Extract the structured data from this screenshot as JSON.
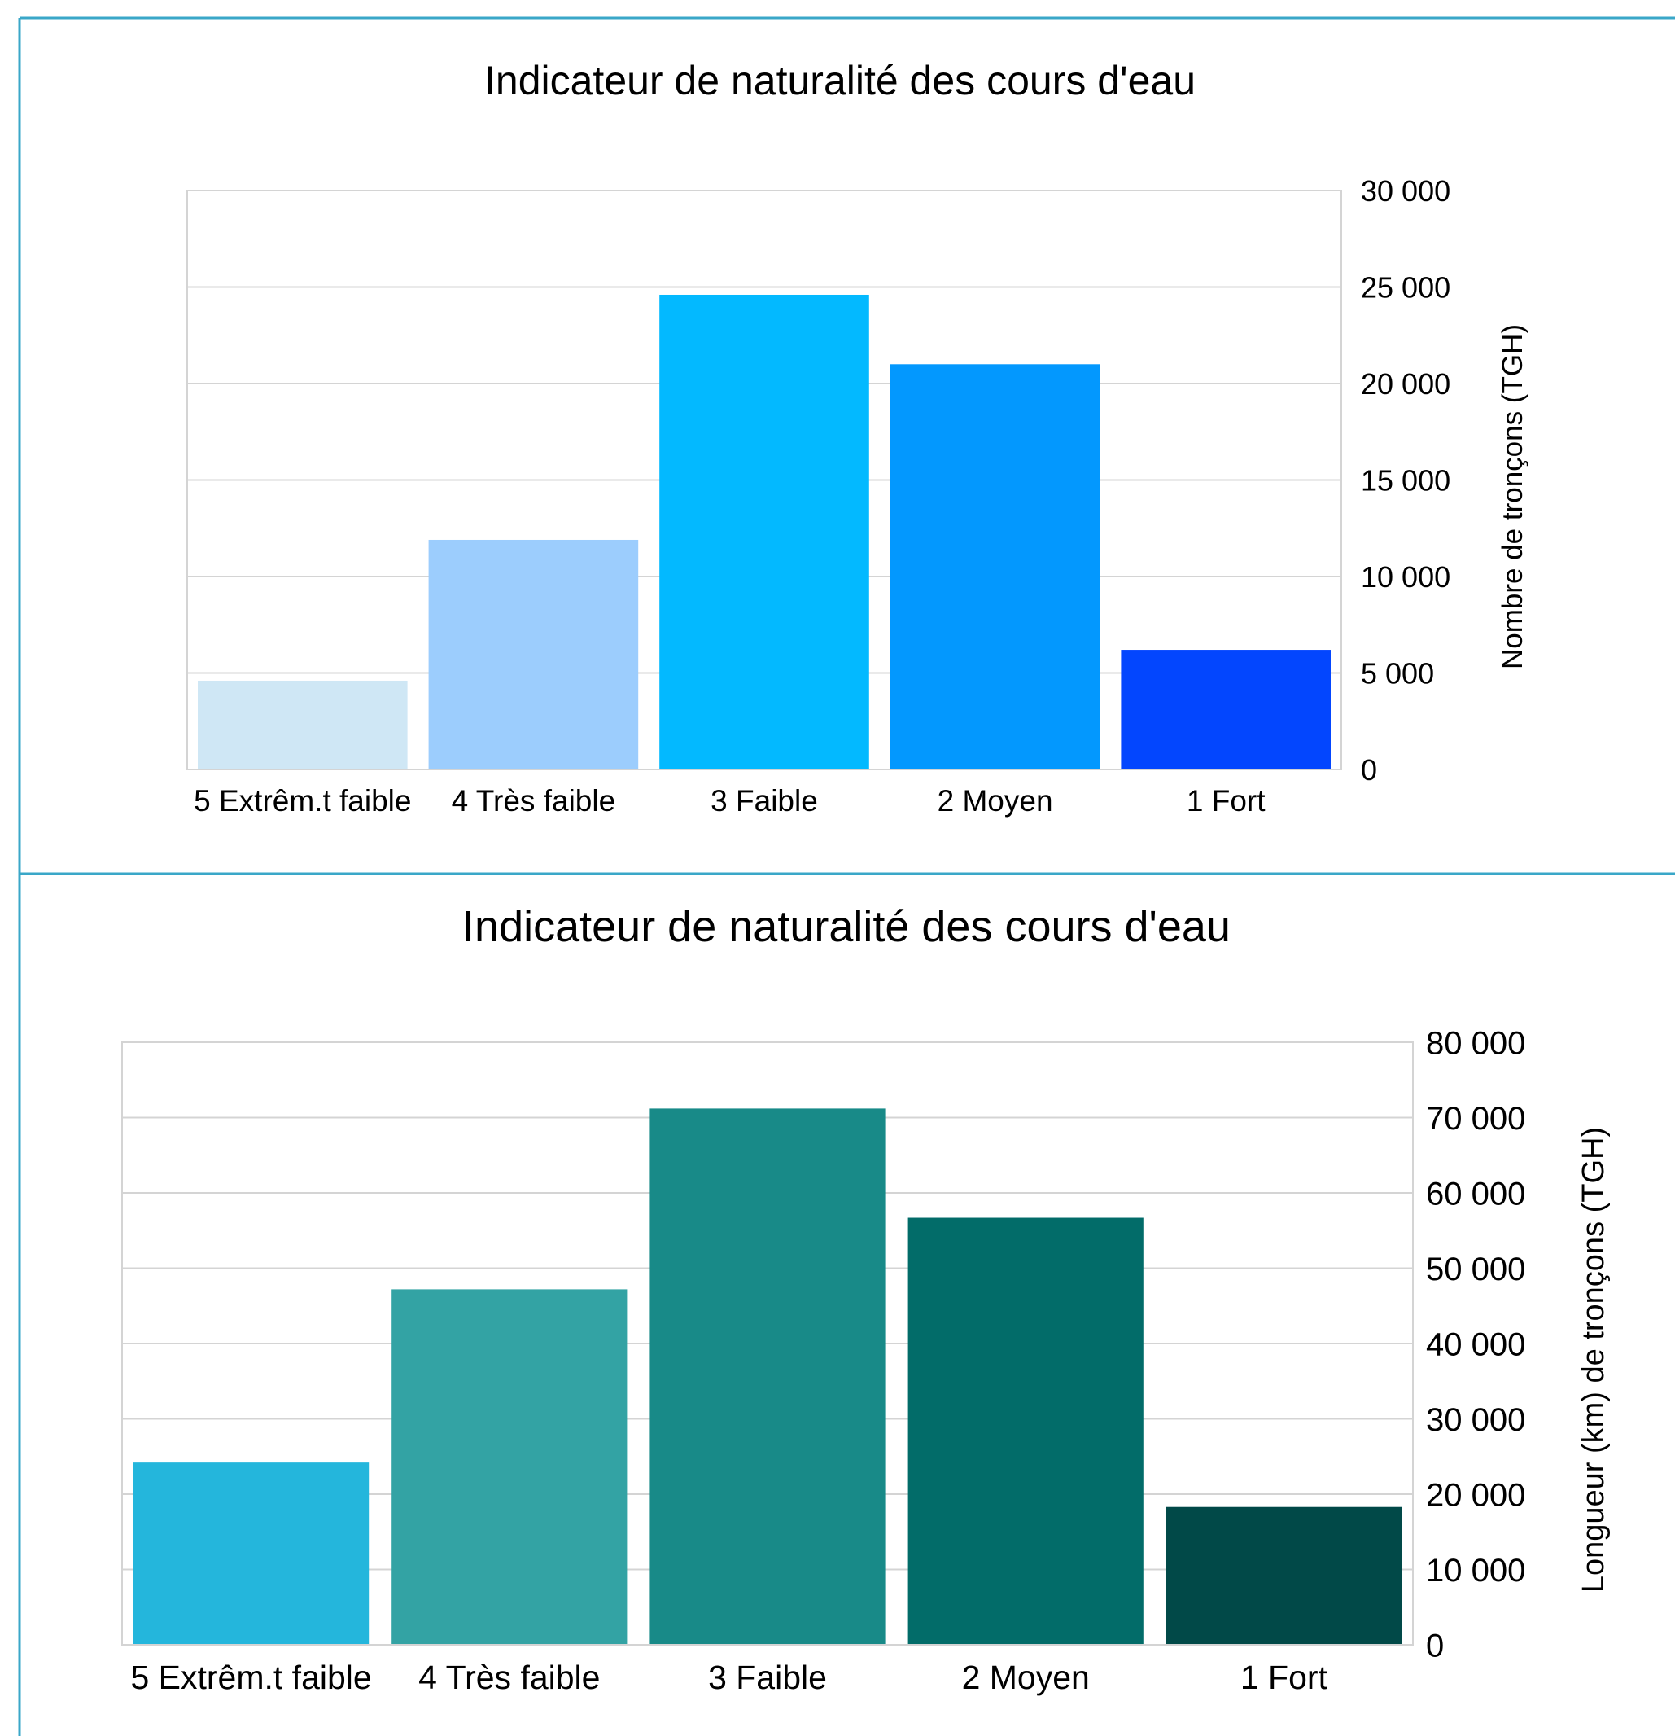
{
  "panels": [
    {
      "chart_data": {
        "type": "bar",
        "title": "Indicateur de naturalité des cours d'eau",
        "categories": [
          "5 Extrêm.t faible",
          "4 Très faible",
          "3 Faible",
          "2 Moyen",
          "1 Fort"
        ],
        "values": [
          4600,
          11900,
          24600,
          21000,
          6200
        ],
        "colors": [
          "#cfe7f5",
          "#9ccdfd",
          "#03b9ff",
          "#0398fe",
          "#0346fe"
        ],
        "ylabel": "Nombre de tronçons (TGH)",
        "ylim": [
          0,
          30000
        ],
        "yticks": [
          0,
          5000,
          10000,
          15000,
          20000,
          25000,
          30000
        ],
        "ytick_labels": [
          "0",
          "5 000",
          "10 000",
          "15 000",
          "20 000",
          "25 000",
          "30 000"
        ],
        "yaxis_side": "right",
        "grid": true,
        "legend": "none"
      }
    },
    {
      "chart_data": {
        "type": "bar",
        "title": "Indicateur de naturalité des cours d'eau",
        "categories": [
          "5 Extrêm.t faible",
          "4 Très faible",
          "3 Faible",
          "2 Moyen",
          "1 Fort"
        ],
        "values": [
          24200,
          47200,
          71200,
          56700,
          18300
        ],
        "colors": [
          "#24b6dc",
          "#33a3a4",
          "#188a88",
          "#026c69",
          "#014948"
        ],
        "ylabel": "Longueur (km) de tronçons (TGH)",
        "ylim": [
          0,
          80000
        ],
        "yticks": [
          0,
          10000,
          20000,
          30000,
          40000,
          50000,
          60000,
          70000,
          80000
        ],
        "ytick_labels": [
          "0",
          "10 000",
          "20 000",
          "30 000",
          "40 000",
          "50 000",
          "60 000",
          "70 000",
          "80 000"
        ],
        "yaxis_side": "right",
        "grid": true,
        "legend": "none"
      }
    }
  ]
}
